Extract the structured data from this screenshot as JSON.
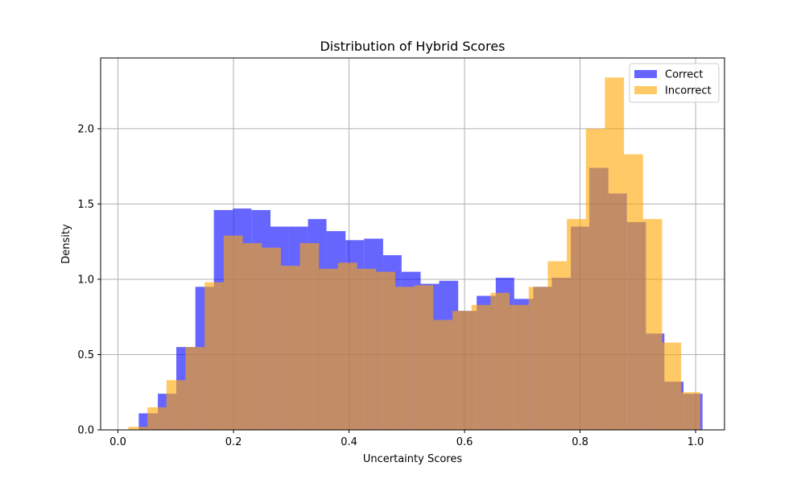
{
  "chart_data": {
    "type": "histogram",
    "title": "Distribution of Hybrid Scores",
    "xlabel": "Uncertainty Scores",
    "ylabel": "Density",
    "xlim": [
      -0.03,
      1.05
    ],
    "ylim": [
      0,
      2.47
    ],
    "xticks": [
      "0.0",
      "0.2",
      "0.4",
      "0.6",
      "0.8",
      "1.0"
    ],
    "yticks": [
      "0.0",
      "0.5",
      "1.0",
      "1.5",
      "2.0"
    ],
    "grid": true,
    "legend_position": "top-right",
    "series": [
      {
        "name": "Correct",
        "color": "#0000ff",
        "opacity": 0.6,
        "bin_edges": [
          0.036,
          0.069,
          0.101,
          0.134,
          0.166,
          0.199,
          0.231,
          0.264,
          0.296,
          0.329,
          0.361,
          0.394,
          0.426,
          0.459,
          0.491,
          0.524,
          0.556,
          0.589,
          0.621,
          0.654,
          0.686,
          0.719,
          0.751,
          0.784,
          0.816,
          0.849,
          0.881,
          0.914,
          0.946,
          0.979
        ],
        "values": [
          0.11,
          0.24,
          0.55,
          0.95,
          1.46,
          1.47,
          1.46,
          1.35,
          1.35,
          1.4,
          1.32,
          1.26,
          1.27,
          1.16,
          1.05,
          0.97,
          0.99,
          0.79,
          0.89,
          1.01,
          0.87,
          0.95,
          1.01,
          1.35,
          1.74,
          1.57,
          1.38,
          0.64,
          0.32,
          0.24
        ]
      },
      {
        "name": "Incorrect",
        "color": "#ffa500",
        "opacity": 0.6,
        "bin_edges": [
          0.018,
          0.051,
          0.084,
          0.117,
          0.15,
          0.183,
          0.216,
          0.249,
          0.282,
          0.315,
          0.348,
          0.381,
          0.414,
          0.447,
          0.48,
          0.513,
          0.546,
          0.579,
          0.612,
          0.645,
          0.678,
          0.711,
          0.744,
          0.777,
          0.81,
          0.843,
          0.876,
          0.909,
          0.942,
          0.975
        ],
        "values": [
          0.02,
          0.15,
          0.33,
          0.55,
          0.98,
          1.29,
          1.24,
          1.21,
          1.09,
          1.24,
          1.07,
          1.11,
          1.07,
          1.05,
          0.95,
          0.96,
          0.73,
          0.79,
          0.83,
          0.91,
          0.83,
          0.95,
          1.12,
          1.4,
          2.0,
          2.34,
          1.83,
          1.4,
          0.58,
          0.25
        ]
      }
    ]
  }
}
